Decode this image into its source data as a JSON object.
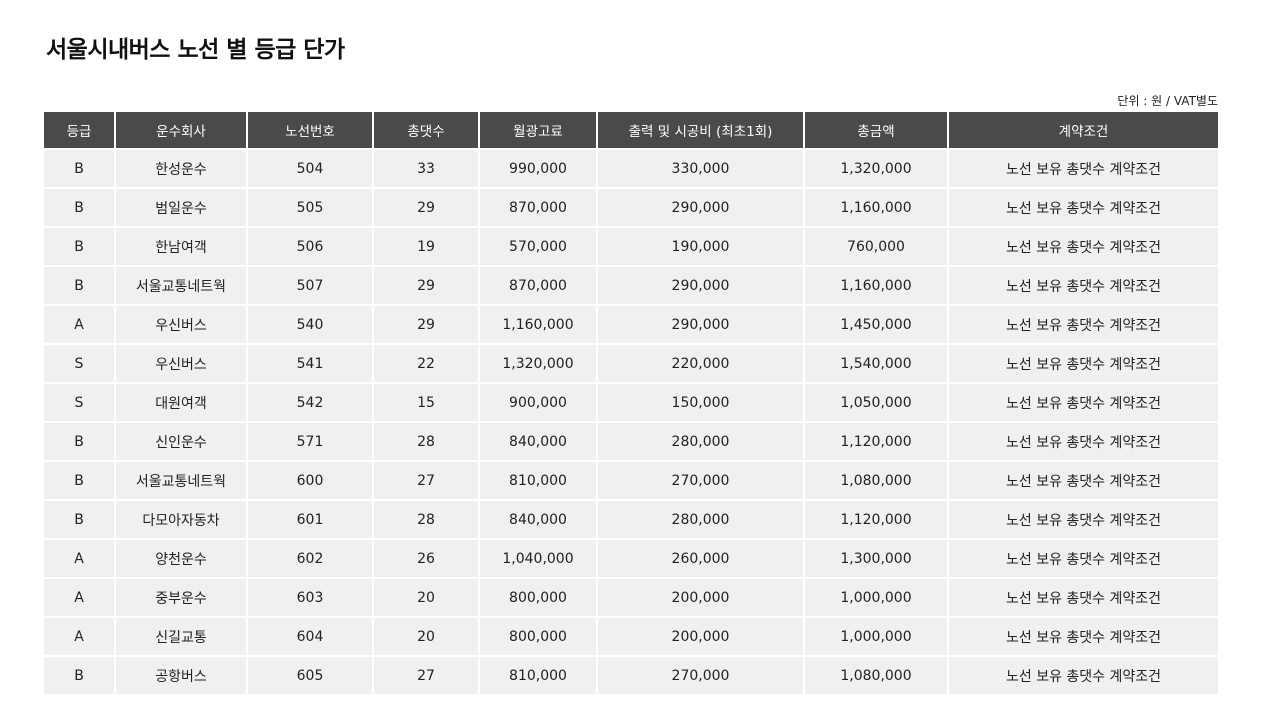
{
  "page": {
    "title": "서울시내버스 노선 별 등급 단가",
    "unit_note": "단위 : 원 / VAT별도"
  },
  "table": {
    "headers": [
      "등급",
      "운수회사",
      "노선번호",
      "총댓수",
      "월광고료",
      "출력 및 시공비 (최초1회)",
      "총금액",
      "계약조건"
    ],
    "rows": [
      [
        "B",
        "한성운수",
        "504",
        "33",
        "990,000",
        "330,000",
        "1,320,000",
        "노선 보유 총댓수 계약조건"
      ],
      [
        "B",
        "범일운수",
        "505",
        "29",
        "870,000",
        "290,000",
        "1,160,000",
        "노선 보유 총댓수 계약조건"
      ],
      [
        "B",
        "한남여객",
        "506",
        "19",
        "570,000",
        "190,000",
        "760,000",
        "노선 보유 총댓수 계약조건"
      ],
      [
        "B",
        "서울교통네트웍",
        "507",
        "29",
        "870,000",
        "290,000",
        "1,160,000",
        "노선 보유 총댓수 계약조건"
      ],
      [
        "A",
        "우신버스",
        "540",
        "29",
        "1,160,000",
        "290,000",
        "1,450,000",
        "노선 보유 총댓수 계약조건"
      ],
      [
        "S",
        "우신버스",
        "541",
        "22",
        "1,320,000",
        "220,000",
        "1,540,000",
        "노선 보유 총댓수 계약조건"
      ],
      [
        "S",
        "대원여객",
        "542",
        "15",
        "900,000",
        "150,000",
        "1,050,000",
        "노선 보유 총댓수 계약조건"
      ],
      [
        "B",
        "신인운수",
        "571",
        "28",
        "840,000",
        "280,000",
        "1,120,000",
        "노선 보유 총댓수 계약조건"
      ],
      [
        "B",
        "서울교통네트웍",
        "600",
        "27",
        "810,000",
        "270,000",
        "1,080,000",
        "노선 보유 총댓수 계약조건"
      ],
      [
        "B",
        "다모아자동차",
        "601",
        "28",
        "840,000",
        "280,000",
        "1,120,000",
        "노선 보유 총댓수 계약조건"
      ],
      [
        "A",
        "양천운수",
        "602",
        "26",
        "1,040,000",
        "260,000",
        "1,300,000",
        "노선 보유 총댓수 계약조건"
      ],
      [
        "A",
        "중부운수",
        "603",
        "20",
        "800,000",
        "200,000",
        "1,000,000",
        "노선 보유 총댓수 계약조건"
      ],
      [
        "A",
        "신길교통",
        "604",
        "20",
        "800,000",
        "200,000",
        "1,000,000",
        "노선 보유 총댓수 계약조건"
      ],
      [
        "B",
        "공항버스",
        "605",
        "27",
        "810,000",
        "270,000",
        "1,080,000",
        "노선 보유 총댓수 계약조건"
      ]
    ]
  }
}
